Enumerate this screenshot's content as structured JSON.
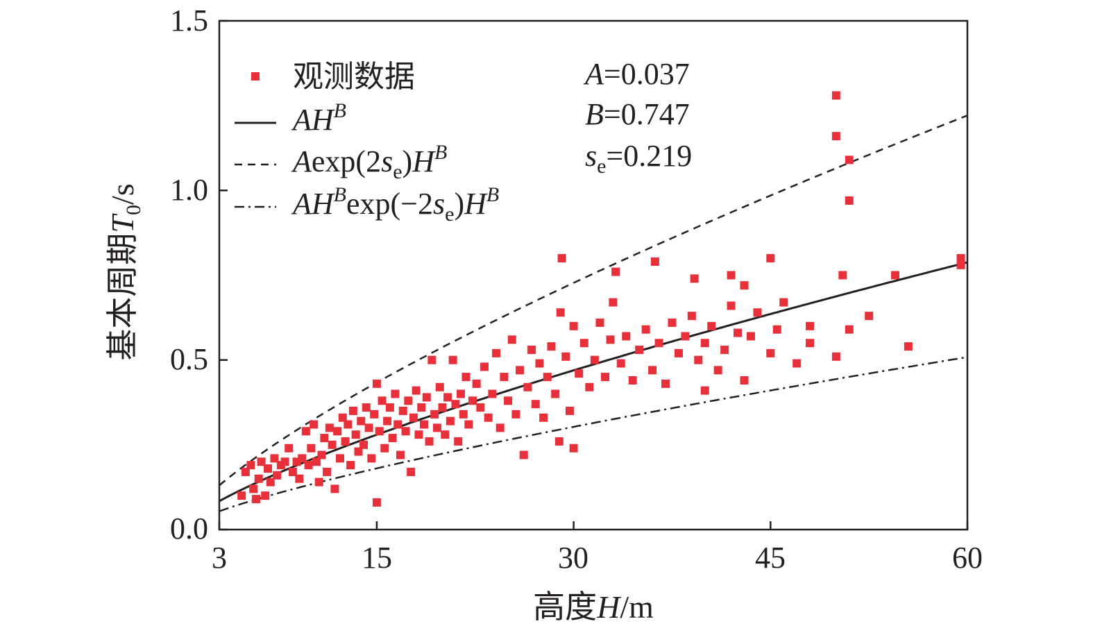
{
  "chart_data": {
    "type": "scatter",
    "xlabel": {
      "prefix": "高度",
      "var": "H",
      "unit": "/m"
    },
    "ylabel": {
      "prefix": "基本周期",
      "var": "T",
      "sub": "0",
      "unit": "/s"
    },
    "xlim": [
      3,
      60
    ],
    "ylim": [
      0,
      1.5
    ],
    "xticks": [
      3,
      15,
      30,
      45,
      60
    ],
    "xtick_labels": [
      "3",
      "15",
      "30",
      "45",
      "60"
    ],
    "yticks": [
      0,
      0.5,
      1.0,
      1.5
    ],
    "ytick_labels": [
      "0.0",
      "0.5",
      "1.0",
      "1.5"
    ],
    "grid": false,
    "legend_position": "top-left",
    "colors": {
      "points": "#e8303a",
      "lines": "#231f20"
    },
    "fit": {
      "A": 0.037,
      "B": 0.747,
      "se": 0.219
    },
    "annotations": {
      "A": {
        "var": "A",
        "value": "=0.037"
      },
      "B": {
        "var": "B",
        "value": "=0.747"
      },
      "se": {
        "var": "s",
        "sub": "e",
        "value": "=0.219"
      }
    },
    "legend": [
      {
        "key": "observed",
        "label": "观测数据"
      },
      {
        "key": "fit",
        "var1": "A",
        "var2": "H",
        "sup": "B"
      },
      {
        "key": "upper",
        "a": "A",
        "f1": "exp(2",
        "s": "s",
        "sub": "e",
        "f2": ")",
        "h": "H",
        "sup": "B"
      },
      {
        "key": "lower",
        "a": "A",
        "h1": "H",
        "sup1": "B",
        "f1": "exp(−2",
        "s": "s",
        "sub": "e",
        "f2": ")",
        "h2": "H",
        "sup2": "B"
      }
    ],
    "series": [
      {
        "name": "观测数据",
        "type": "scatter",
        "points": [
          [
            4.7,
            0.1
          ],
          [
            5.0,
            0.17
          ],
          [
            5.4,
            0.19
          ],
          [
            5.6,
            0.12
          ],
          [
            5.8,
            0.09
          ],
          [
            6.0,
            0.15
          ],
          [
            6.2,
            0.2
          ],
          [
            6.5,
            0.1
          ],
          [
            6.7,
            0.18
          ],
          [
            6.9,
            0.14
          ],
          [
            7.2,
            0.21
          ],
          [
            7.4,
            0.16
          ],
          [
            7.7,
            0.19
          ],
          [
            8.0,
            0.2
          ],
          [
            8.3,
            0.24
          ],
          [
            8.6,
            0.17
          ],
          [
            8.9,
            0.2
          ],
          [
            9.1,
            0.15
          ],
          [
            9.3,
            0.21
          ],
          [
            9.6,
            0.29
          ],
          [
            9.8,
            0.19
          ],
          [
            10.0,
            0.24
          ],
          [
            10.2,
            0.31
          ],
          [
            10.4,
            0.2
          ],
          [
            10.6,
            0.14
          ],
          [
            10.8,
            0.22
          ],
          [
            11.0,
            0.27
          ],
          [
            11.2,
            0.17
          ],
          [
            11.4,
            0.3
          ],
          [
            11.6,
            0.25
          ],
          [
            11.8,
            0.12
          ],
          [
            12.0,
            0.29
          ],
          [
            12.2,
            0.21
          ],
          [
            12.4,
            0.33
          ],
          [
            12.6,
            0.26
          ],
          [
            12.8,
            0.31
          ],
          [
            13.0,
            0.19
          ],
          [
            13.2,
            0.35
          ],
          [
            13.4,
            0.28
          ],
          [
            13.6,
            0.23
          ],
          [
            13.8,
            0.32
          ],
          [
            14.0,
            0.25
          ],
          [
            14.2,
            0.36
          ],
          [
            14.4,
            0.3
          ],
          [
            14.6,
            0.21
          ],
          [
            14.8,
            0.34
          ],
          [
            15.0,
            0.08
          ],
          [
            15.0,
            0.43
          ],
          [
            15.2,
            0.29
          ],
          [
            15.4,
            0.38
          ],
          [
            15.6,
            0.24
          ],
          [
            15.8,
            0.32
          ],
          [
            16.0,
            0.36
          ],
          [
            16.2,
            0.27
          ],
          [
            16.4,
            0.4
          ],
          [
            16.6,
            0.31
          ],
          [
            16.8,
            0.22
          ],
          [
            17.0,
            0.35
          ],
          [
            17.2,
            0.29
          ],
          [
            17.4,
            0.38
          ],
          [
            17.6,
            0.17
          ],
          [
            17.8,
            0.33
          ],
          [
            18.0,
            0.41
          ],
          [
            18.2,
            0.28
          ],
          [
            18.4,
            0.36
          ],
          [
            18.6,
            0.31
          ],
          [
            18.8,
            0.39
          ],
          [
            19.0,
            0.26
          ],
          [
            19.2,
            0.5
          ],
          [
            19.4,
            0.34
          ],
          [
            19.6,
            0.3
          ],
          [
            19.8,
            0.42
          ],
          [
            20.0,
            0.36
          ],
          [
            20.2,
            0.28
          ],
          [
            20.4,
            0.39
          ],
          [
            20.6,
            0.32
          ],
          [
            20.8,
            0.5
          ],
          [
            21.0,
            0.37
          ],
          [
            21.2,
            0.26
          ],
          [
            21.4,
            0.4
          ],
          [
            21.6,
            0.34
          ],
          [
            21.8,
            0.45
          ],
          [
            22.0,
            0.31
          ],
          [
            22.3,
            0.38
          ],
          [
            22.6,
            0.43
          ],
          [
            22.9,
            0.36
          ],
          [
            23.2,
            0.48
          ],
          [
            23.5,
            0.33
          ],
          [
            23.8,
            0.4
          ],
          [
            24.1,
            0.52
          ],
          [
            24.4,
            0.3
          ],
          [
            24.7,
            0.45
          ],
          [
            25.0,
            0.38
          ],
          [
            25.3,
            0.56
          ],
          [
            25.6,
            0.34
          ],
          [
            25.9,
            0.47
          ],
          [
            26.2,
            0.22
          ],
          [
            26.5,
            0.42
          ],
          [
            26.8,
            0.53
          ],
          [
            27.1,
            0.37
          ],
          [
            27.4,
            0.49
          ],
          [
            27.7,
            0.33
          ],
          [
            28.0,
            0.45
          ],
          [
            28.3,
            0.54
          ],
          [
            28.6,
            0.4
          ],
          [
            28.9,
            0.26
          ],
          [
            29.0,
            0.64
          ],
          [
            29.1,
            0.8
          ],
          [
            29.4,
            0.51
          ],
          [
            29.7,
            0.35
          ],
          [
            30.0,
            0.24
          ],
          [
            30.0,
            0.6
          ],
          [
            30.4,
            0.46
          ],
          [
            30.8,
            0.55
          ],
          [
            31.2,
            0.42
          ],
          [
            31.6,
            0.5
          ],
          [
            32.0,
            0.61
          ],
          [
            32.4,
            0.45
          ],
          [
            32.8,
            0.56
          ],
          [
            33.0,
            0.67
          ],
          [
            33.2,
            0.76
          ],
          [
            33.6,
            0.49
          ],
          [
            34.0,
            0.57
          ],
          [
            34.5,
            0.44
          ],
          [
            35.0,
            0.53
          ],
          [
            35.5,
            0.59
          ],
          [
            36.0,
            0.47
          ],
          [
            36.2,
            0.79
          ],
          [
            36.5,
            0.55
          ],
          [
            37.0,
            0.43
          ],
          [
            37.5,
            0.61
          ],
          [
            38.0,
            0.52
          ],
          [
            38.5,
            0.57
          ],
          [
            39.0,
            0.63
          ],
          [
            39.2,
            0.74
          ],
          [
            39.5,
            0.5
          ],
          [
            40.0,
            0.41
          ],
          [
            40.0,
            0.55
          ],
          [
            40.5,
            0.6
          ],
          [
            41.0,
            0.47
          ],
          [
            41.5,
            0.53
          ],
          [
            42.0,
            0.66
          ],
          [
            42.0,
            0.75
          ],
          [
            42.5,
            0.58
          ],
          [
            43.0,
            0.44
          ],
          [
            43.0,
            0.72
          ],
          [
            43.5,
            0.57
          ],
          [
            44.0,
            0.64
          ],
          [
            45.0,
            0.8
          ],
          [
            45.0,
            0.52
          ],
          [
            45.5,
            0.59
          ],
          [
            46.0,
            0.67
          ],
          [
            47.0,
            0.49
          ],
          [
            48.0,
            0.55
          ],
          [
            48.0,
            0.6
          ],
          [
            50.0,
            1.28
          ],
          [
            50.0,
            1.16
          ],
          [
            50.0,
            0.51
          ],
          [
            50.5,
            0.75
          ],
          [
            51.0,
            1.09
          ],
          [
            51.0,
            0.97
          ],
          [
            51.0,
            0.59
          ],
          [
            52.5,
            0.63
          ],
          [
            54.5,
            0.75
          ],
          [
            55.5,
            0.54
          ],
          [
            59.5,
            0.8
          ],
          [
            59.5,
            0.78
          ]
        ]
      },
      {
        "name": "fit",
        "type": "line",
        "style": "solid"
      },
      {
        "name": "upper",
        "type": "line",
        "style": "dashed"
      },
      {
        "name": "lower",
        "type": "line",
        "style": "dashdot"
      }
    ]
  }
}
